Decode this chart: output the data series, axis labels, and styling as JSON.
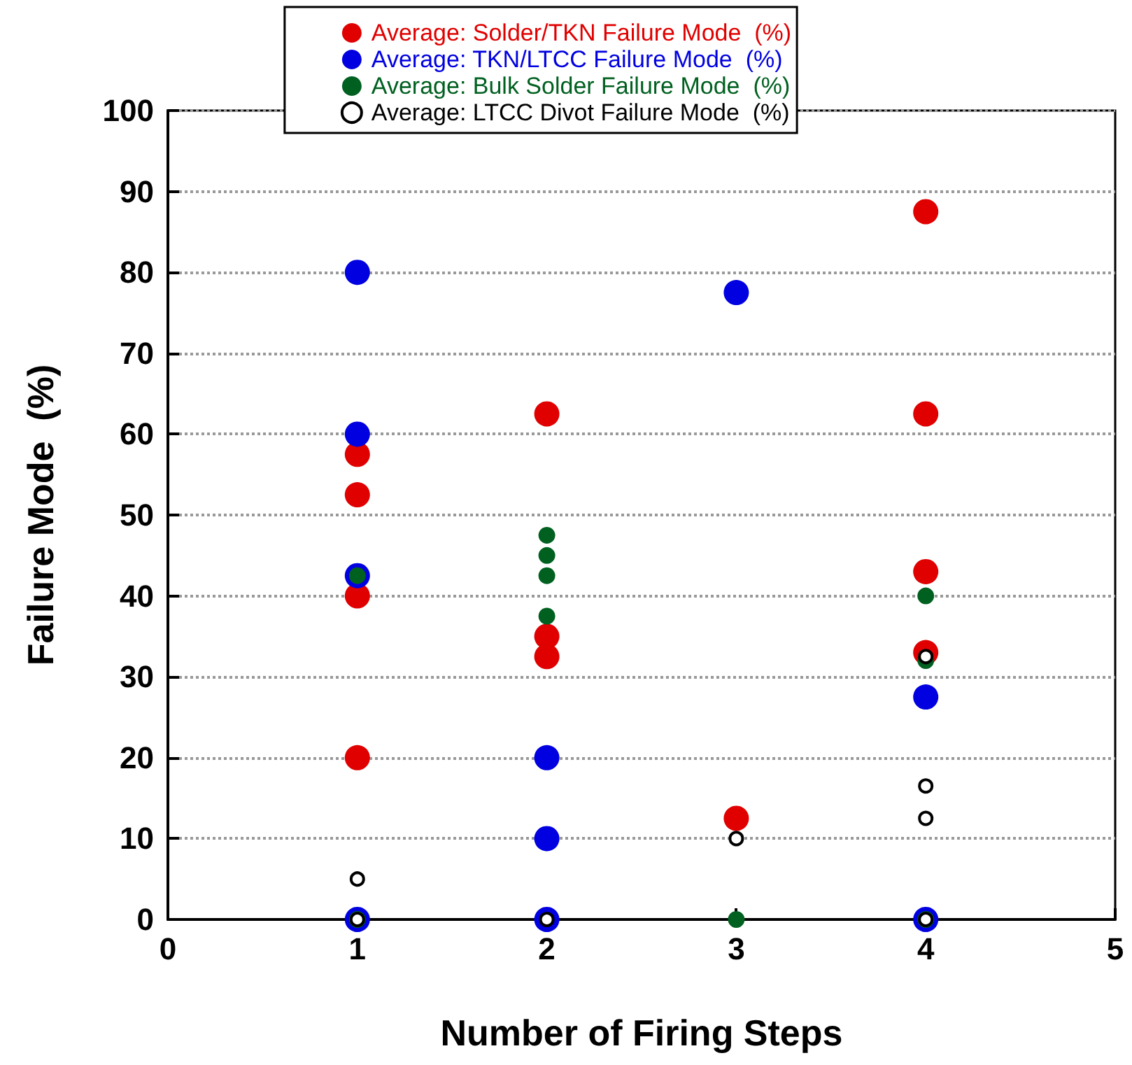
{
  "chart_data": {
    "type": "scatter",
    "xlabel": "Number of Firing Steps",
    "ylabel": "Failure Mode  (%)",
    "xlim": [
      0,
      5
    ],
    "xticks": [
      0,
      1,
      2,
      3,
      4,
      5
    ],
    "ylim": [
      0,
      100
    ],
    "yticks": [
      0,
      10,
      20,
      30,
      40,
      50,
      60,
      70,
      80,
      90,
      100
    ],
    "grid": "y",
    "legend": "top",
    "marker": "circle",
    "series": [
      {
        "name": "Average: Solder/TKN Failure Mode  (%)",
        "color": "#e00000",
        "x": [
          1,
          1,
          1,
          1,
          2,
          2,
          2,
          3,
          4,
          4,
          4,
          4
        ],
        "values": [
          57.5,
          52.5,
          40,
          20,
          62.5,
          35,
          32.5,
          12.5,
          87.5,
          62.5,
          43,
          33
        ]
      },
      {
        "name": "Average: TKN/LTCC Failure Mode  (%)",
        "color": "#0000e0",
        "x": [
          1,
          1,
          1,
          1,
          2,
          2,
          2,
          3,
          4,
          4
        ],
        "values": [
          80,
          60,
          42.5,
          0,
          20,
          10,
          0,
          77.5,
          27.5,
          0
        ]
      },
      {
        "name": "Average: Bulk Solder Failure Mode  (%)",
        "color": "#006020",
        "x": [
          1,
          1,
          2,
          2,
          2,
          2,
          3,
          4,
          4,
          4
        ],
        "values": [
          42.5,
          0,
          47.5,
          45,
          42.5,
          37.5,
          0,
          40,
          32,
          0
        ]
      },
      {
        "name": "Average: LTCC Divot Failure Mode  (%)",
        "color": "#000000",
        "x": [
          1,
          1,
          2,
          3,
          4,
          4,
          4,
          4
        ],
        "values": [
          5,
          0,
          0,
          10,
          32.5,
          16.5,
          12.5,
          0
        ]
      }
    ]
  }
}
